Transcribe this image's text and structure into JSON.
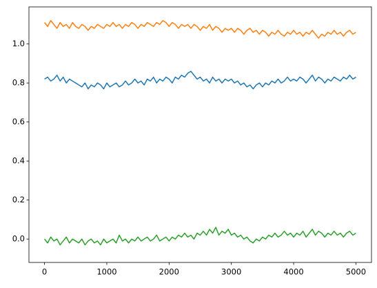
{
  "chart_data": {
    "type": "line",
    "x": [
      0,
      50,
      100,
      150,
      200,
      250,
      300,
      350,
      400,
      450,
      500,
      550,
      600,
      650,
      700,
      750,
      800,
      850,
      900,
      950,
      1000,
      1050,
      1100,
      1150,
      1200,
      1250,
      1300,
      1350,
      1400,
      1450,
      1500,
      1550,
      1600,
      1650,
      1700,
      1750,
      1800,
      1850,
      1900,
      1950,
      2000,
      2050,
      2100,
      2150,
      2200,
      2250,
      2300,
      2350,
      2400,
      2450,
      2500,
      2550,
      2600,
      2650,
      2700,
      2750,
      2800,
      2850,
      2900,
      2950,
      3000,
      3050,
      3100,
      3150,
      3200,
      3250,
      3300,
      3350,
      3400,
      3450,
      3500,
      3550,
      3600,
      3650,
      3700,
      3750,
      3800,
      3850,
      3900,
      3950,
      4000,
      4050,
      4100,
      4150,
      4200,
      4250,
      4300,
      4350,
      4400,
      4450,
      4500,
      4550,
      4600,
      4650,
      4700,
      4750,
      4800,
      4850,
      4900,
      4950,
      5000
    ],
    "series": [
      {
        "color": "#1f77b4",
        "values": [
          0.82,
          0.83,
          0.81,
          0.82,
          0.84,
          0.81,
          0.83,
          0.8,
          0.82,
          0.81,
          0.8,
          0.79,
          0.78,
          0.8,
          0.77,
          0.79,
          0.78,
          0.8,
          0.79,
          0.77,
          0.8,
          0.78,
          0.79,
          0.8,
          0.78,
          0.79,
          0.81,
          0.79,
          0.8,
          0.82,
          0.8,
          0.81,
          0.79,
          0.82,
          0.81,
          0.83,
          0.8,
          0.82,
          0.81,
          0.83,
          0.82,
          0.8,
          0.83,
          0.82,
          0.84,
          0.83,
          0.85,
          0.86,
          0.84,
          0.82,
          0.83,
          0.81,
          0.82,
          0.8,
          0.83,
          0.81,
          0.82,
          0.8,
          0.82,
          0.81,
          0.82,
          0.8,
          0.81,
          0.79,
          0.8,
          0.78,
          0.79,
          0.77,
          0.79,
          0.8,
          0.78,
          0.8,
          0.79,
          0.81,
          0.8,
          0.82,
          0.8,
          0.81,
          0.83,
          0.81,
          0.82,
          0.81,
          0.83,
          0.82,
          0.8,
          0.82,
          0.84,
          0.81,
          0.83,
          0.82,
          0.8,
          0.82,
          0.81,
          0.83,
          0.82,
          0.81,
          0.83,
          0.82,
          0.84,
          0.82,
          0.83
        ]
      },
      {
        "color": "#ff7f0e",
        "values": [
          1.11,
          1.09,
          1.12,
          1.1,
          1.08,
          1.11,
          1.09,
          1.1,
          1.08,
          1.11,
          1.09,
          1.08,
          1.1,
          1.09,
          1.07,
          1.09,
          1.08,
          1.1,
          1.09,
          1.08,
          1.1,
          1.09,
          1.11,
          1.09,
          1.1,
          1.08,
          1.1,
          1.09,
          1.11,
          1.1,
          1.08,
          1.1,
          1.09,
          1.11,
          1.1,
          1.09,
          1.11,
          1.1,
          1.12,
          1.11,
          1.09,
          1.11,
          1.1,
          1.08,
          1.1,
          1.09,
          1.1,
          1.08,
          1.1,
          1.09,
          1.07,
          1.09,
          1.08,
          1.1,
          1.07,
          1.09,
          1.08,
          1.06,
          1.08,
          1.07,
          1.08,
          1.06,
          1.08,
          1.07,
          1.05,
          1.07,
          1.08,
          1.06,
          1.07,
          1.05,
          1.07,
          1.06,
          1.04,
          1.06,
          1.05,
          1.07,
          1.05,
          1.04,
          1.06,
          1.05,
          1.07,
          1.05,
          1.06,
          1.04,
          1.06,
          1.05,
          1.07,
          1.05,
          1.03,
          1.05,
          1.04,
          1.06,
          1.05,
          1.07,
          1.05,
          1.06,
          1.04,
          1.06,
          1.07,
          1.05,
          1.06
        ]
      },
      {
        "color": "#2ca02c",
        "values": [
          0.0,
          -0.02,
          0.01,
          -0.01,
          0.0,
          -0.03,
          -0.01,
          0.01,
          -0.02,
          0.0,
          -0.01,
          -0.02,
          0.0,
          -0.03,
          -0.01,
          0.0,
          -0.02,
          -0.01,
          -0.03,
          0.0,
          -0.02,
          -0.01,
          0.0,
          -0.02,
          0.02,
          -0.01,
          0.0,
          -0.02,
          0.0,
          -0.01,
          0.01,
          -0.01,
          0.0,
          0.01,
          -0.01,
          0.0,
          0.02,
          -0.01,
          0.0,
          0.01,
          -0.01,
          0.01,
          0.0,
          0.02,
          0.01,
          0.03,
          0.01,
          0.02,
          0.0,
          0.03,
          0.02,
          0.04,
          0.02,
          0.05,
          0.03,
          0.06,
          0.02,
          0.04,
          0.03,
          0.05,
          0.02,
          0.03,
          0.01,
          0.02,
          0.0,
          0.01,
          -0.01,
          -0.02,
          0.0,
          -0.01,
          0.01,
          0.0,
          0.02,
          0.01,
          0.03,
          0.01,
          0.02,
          0.04,
          0.02,
          0.03,
          0.01,
          0.03,
          0.02,
          0.04,
          0.01,
          0.03,
          0.05,
          0.02,
          0.04,
          0.03,
          0.01,
          0.03,
          0.02,
          0.04,
          0.02,
          0.03,
          0.01,
          0.03,
          0.04,
          0.02,
          0.03
        ]
      }
    ],
    "xlim": [
      -250,
      5250
    ],
    "xticks": [
      0,
      1000,
      2000,
      3000,
      4000,
      5000
    ],
    "ylim": [
      -0.12,
      1.19
    ],
    "yticks": [
      {
        "value": 0,
        "label": "0.0"
      },
      {
        "value": 0.2,
        "label": "0.2"
      },
      {
        "value": 0.4,
        "label": "0.4"
      },
      {
        "value": 0.6,
        "label": "0.6"
      },
      {
        "value": 0.8,
        "label": "0.8"
      },
      {
        "value": 1.0,
        "label": "1.0"
      }
    ],
    "grid": false
  }
}
